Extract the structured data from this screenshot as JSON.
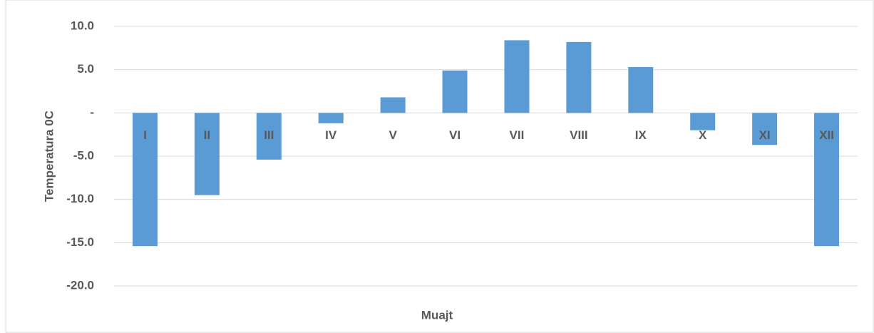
{
  "chart_data": {
    "type": "bar",
    "x_label": "Muajt",
    "y_label": "Temperatura 0C",
    "categories": [
      "I",
      "II",
      "III",
      "IV",
      "V",
      "VI",
      "VII",
      "VIII",
      "IX",
      "X",
      "XI",
      "XII"
    ],
    "values": [
      -15.4,
      -9.5,
      -5.4,
      -1.2,
      1.8,
      4.9,
      8.4,
      8.2,
      5.3,
      -2.0,
      -3.7,
      -15.4
    ],
    "color": "#5b9bd5",
    "ylim": [
      -20,
      10
    ],
    "yticks": [
      {
        "value": 10,
        "label": "10.0"
      },
      {
        "value": 5,
        "label": "5.0"
      },
      {
        "value": 0,
        "label": "-"
      },
      {
        "value": -5,
        "label": "-5.0"
      },
      {
        "value": -10,
        "label": "-10.0"
      },
      {
        "value": -15,
        "label": "-15.0"
      },
      {
        "value": -20,
        "label": "-20.0"
      }
    ],
    "grid": true
  }
}
